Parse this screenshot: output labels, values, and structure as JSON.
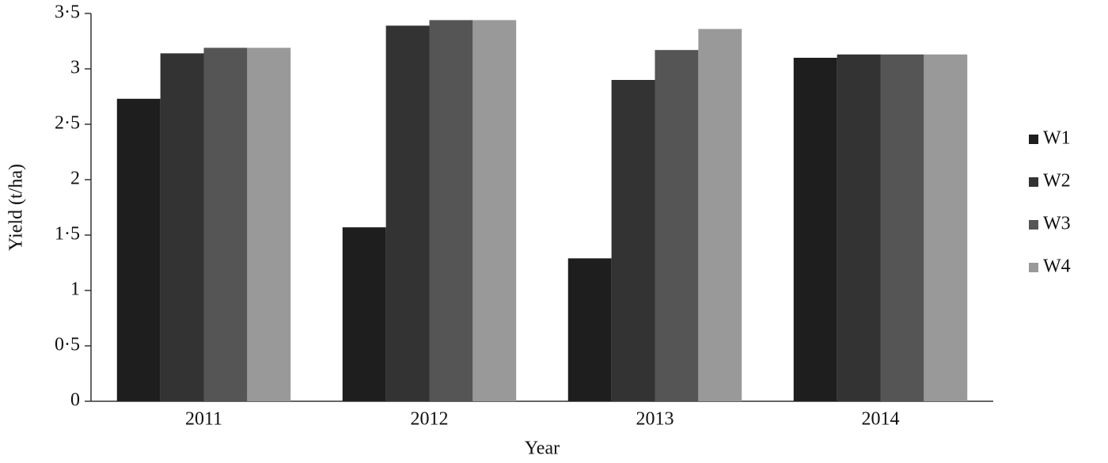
{
  "chart_data": {
    "type": "bar",
    "x_label": "Year",
    "y_label": "Yield (t/ha)",
    "categories": [
      "2011",
      "2012",
      "2013",
      "2014"
    ],
    "series": [
      {
        "name": "W1",
        "color": "#1e1e1e",
        "values": [
          2.73,
          1.57,
          1.29,
          3.1
        ]
      },
      {
        "name": "W2",
        "color": "#333333",
        "values": [
          3.14,
          3.39,
          2.9,
          3.13
        ]
      },
      {
        "name": "W3",
        "color": "#555555",
        "values": [
          3.19,
          3.44,
          3.17,
          3.13
        ]
      },
      {
        "name": "W4",
        "color": "#999999",
        "values": [
          3.19,
          3.44,
          3.36,
          3.13
        ]
      }
    ],
    "ylim": [
      0,
      3.5
    ],
    "yticks": [
      0,
      {
        "value": 0.5,
        "label": "0·5"
      },
      1,
      {
        "value": 1.5,
        "label": "1·5"
      },
      2,
      {
        "value": 2.5,
        "label": "2·5"
      },
      3,
      {
        "value": 3.5,
        "label": "3·5"
      }
    ],
    "grid": false,
    "legend": "right"
  }
}
